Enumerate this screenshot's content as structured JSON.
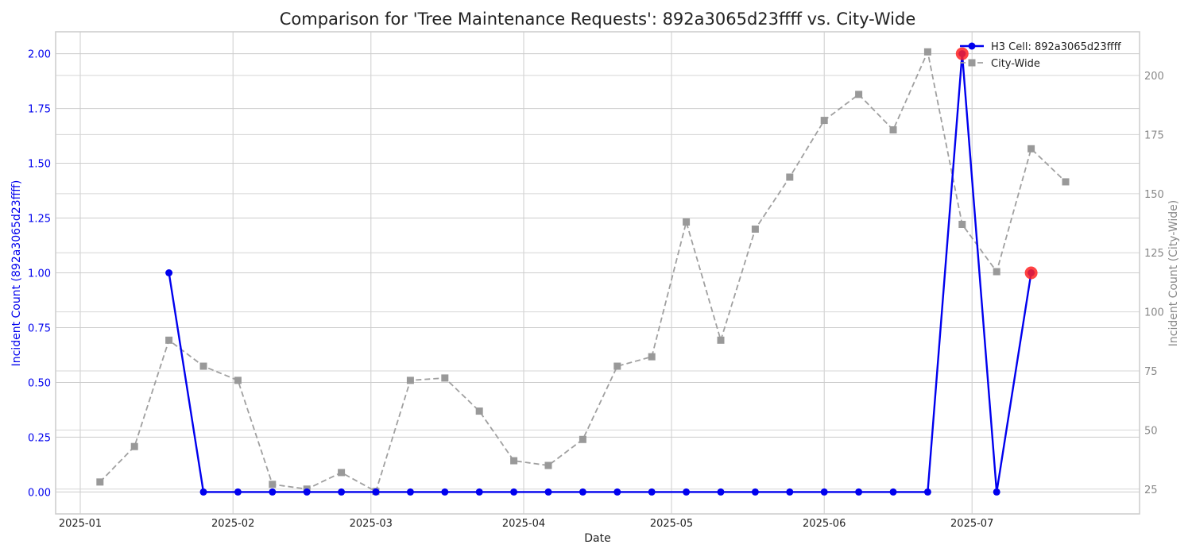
{
  "chart_data": {
    "type": "line",
    "title": "Comparison for 'Tree Maintenance Requests': 892a3065d23ffff vs. City-Wide",
    "xlabel": "Date",
    "ylabel_left": "Incident Count (892a3065d23ffff)",
    "ylabel_right": "Incident Count (City-Wide)",
    "xlim": [
      "2024-12-27",
      "2025-08-04"
    ],
    "ylim_left": [
      -0.1,
      2.1
    ],
    "ylim_right": [
      14.5,
      218.5
    ],
    "x_ticks": [
      "2025-01-01",
      "2025-02-01",
      "2025-03-01",
      "2025-04-01",
      "2025-05-01",
      "2025-06-01",
      "2025-07-01"
    ],
    "x_tick_labels": [
      "2025-01",
      "2025-02",
      "2025-03",
      "2025-04",
      "2025-05",
      "2025-06",
      "2025-07"
    ],
    "y_ticks_left": [
      0,
      0.25,
      0.5,
      0.75,
      1.0,
      1.25,
      1.5,
      1.75,
      2.0
    ],
    "y_tick_labels_left": [
      "0.00",
      "0.25",
      "0.50",
      "0.75",
      "1.00",
      "1.25",
      "1.50",
      "1.75",
      "2.00"
    ],
    "y_ticks_right": [
      25,
      50,
      75,
      100,
      125,
      150,
      175,
      200
    ],
    "y_tick_labels_right": [
      "25",
      "50",
      "75",
      "100",
      "125",
      "150",
      "175",
      "200"
    ],
    "grid": true,
    "legend_position": "top-right",
    "series": [
      {
        "name": "H3 Cell: 892a3065d23ffff",
        "axis": "left",
        "color": "#0000ee",
        "style": "solid",
        "marker": "circle",
        "x": [
          "2025-01-19",
          "2025-01-26",
          "2025-02-02",
          "2025-02-09",
          "2025-02-16",
          "2025-02-23",
          "2025-03-02",
          "2025-03-09",
          "2025-03-16",
          "2025-03-23",
          "2025-03-30",
          "2025-04-06",
          "2025-04-13",
          "2025-04-20",
          "2025-04-27",
          "2025-05-04",
          "2025-05-11",
          "2025-05-18",
          "2025-05-25",
          "2025-06-01",
          "2025-06-08",
          "2025-06-15",
          "2025-06-22",
          "2025-06-29",
          "2025-07-06",
          "2025-07-13"
        ],
        "values": [
          1,
          0,
          0,
          0,
          0,
          0,
          0,
          0,
          0,
          0,
          0,
          0,
          0,
          0,
          0,
          0,
          0,
          0,
          0,
          0,
          0,
          0,
          0,
          2,
          0,
          1
        ],
        "highlighted": [
          "2025-06-29",
          "2025-07-13"
        ]
      },
      {
        "name": "City-Wide",
        "axis": "right",
        "color": "#999999",
        "style": "dashed",
        "marker": "square",
        "x": [
          "2025-01-05",
          "2025-01-12",
          "2025-01-19",
          "2025-01-26",
          "2025-02-02",
          "2025-02-09",
          "2025-02-16",
          "2025-02-23",
          "2025-03-02",
          "2025-03-09",
          "2025-03-16",
          "2025-03-23",
          "2025-03-30",
          "2025-04-06",
          "2025-04-13",
          "2025-04-20",
          "2025-04-27",
          "2025-05-04",
          "2025-05-11",
          "2025-05-18",
          "2025-05-25",
          "2025-06-01",
          "2025-06-08",
          "2025-06-15",
          "2025-06-22",
          "2025-06-29",
          "2025-07-06",
          "2025-07-13",
          "2025-07-20"
        ],
        "values": [
          28,
          43,
          88,
          77,
          71,
          27,
          25,
          32,
          24,
          71,
          72,
          58,
          37,
          35,
          46,
          77,
          81,
          138,
          88,
          135,
          157,
          181,
          192,
          177,
          210,
          137,
          117,
          169,
          155
        ]
      }
    ]
  }
}
